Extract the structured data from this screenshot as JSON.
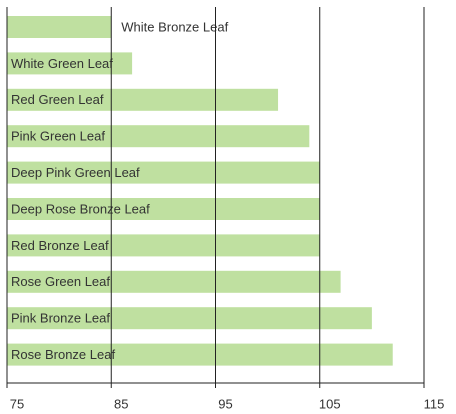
{
  "chart_data": {
    "type": "bar",
    "orientation": "horizontal",
    "categories": [
      "White Bronze Leaf",
      "White Green Leaf",
      "Red Green Leaf",
      "Pink Green Leaf",
      "Deep Pink Green Leaf",
      "Deep Rose Bronze Leaf",
      "Red Bronze Leaf",
      "Rose Green Leaf",
      "Pink Bronze Leaf",
      "Rose Bronze Leaf"
    ],
    "values": [
      85,
      87,
      101,
      104,
      105,
      105,
      105,
      107,
      110,
      112
    ],
    "color": "#bfe0a0",
    "xlim": [
      75,
      115
    ],
    "xticks": [
      75,
      85,
      95,
      105,
      115
    ],
    "grid": true
  }
}
